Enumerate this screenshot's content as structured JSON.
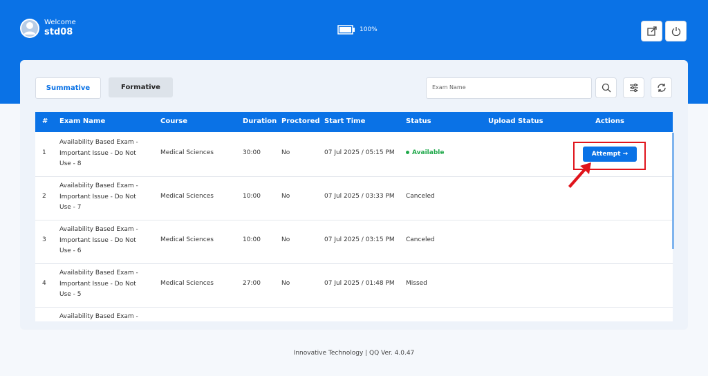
{
  "header": {
    "welcome": "Welcome",
    "username": "std08",
    "battery": "100%"
  },
  "tabs": [
    "Summative",
    "Formative"
  ],
  "search_placeholder": "Exam Name",
  "table": {
    "columns": [
      "#",
      "Exam Name",
      "Course",
      "Duration",
      "Proctored",
      "Start Time",
      "Status",
      "Upload Status",
      "Actions"
    ],
    "rows": [
      {
        "num": "1",
        "exam_name": "Availability Based Exam - Important Issue - Do Not Use - 8",
        "course": "Medical Sciences",
        "duration": "30:00",
        "proctored": "No",
        "start_time": "07 Jul 2025 / 05:15 PM",
        "status": "Available",
        "action": "Attempt →"
      },
      {
        "num": "2",
        "exam_name": "Availability Based Exam - Important Issue - Do Not Use - 7",
        "course": "Medical Sciences",
        "duration": "10:00",
        "proctored": "No",
        "start_time": "07 Jul 2025 / 03:33 PM",
        "status": "Canceled"
      },
      {
        "num": "3",
        "exam_name": "Availability Based Exam - Important Issue - Do Not Use - 6",
        "course": "Medical Sciences",
        "duration": "10:00",
        "proctored": "No",
        "start_time": "07 Jul 2025 / 03:15 PM",
        "status": "Canceled"
      },
      {
        "num": "4",
        "exam_name": "Availability Based Exam - Important Issue - Do Not Use - 5",
        "course": "Medical Sciences",
        "duration": "27:00",
        "proctored": "No",
        "start_time": "07 Jul 2025 / 01:48 PM",
        "status": "Missed"
      },
      {
        "exam_name": "Availability Based Exam -"
      }
    ]
  },
  "footer": "Innovative Technology | QQ Ver. 4.0.47"
}
